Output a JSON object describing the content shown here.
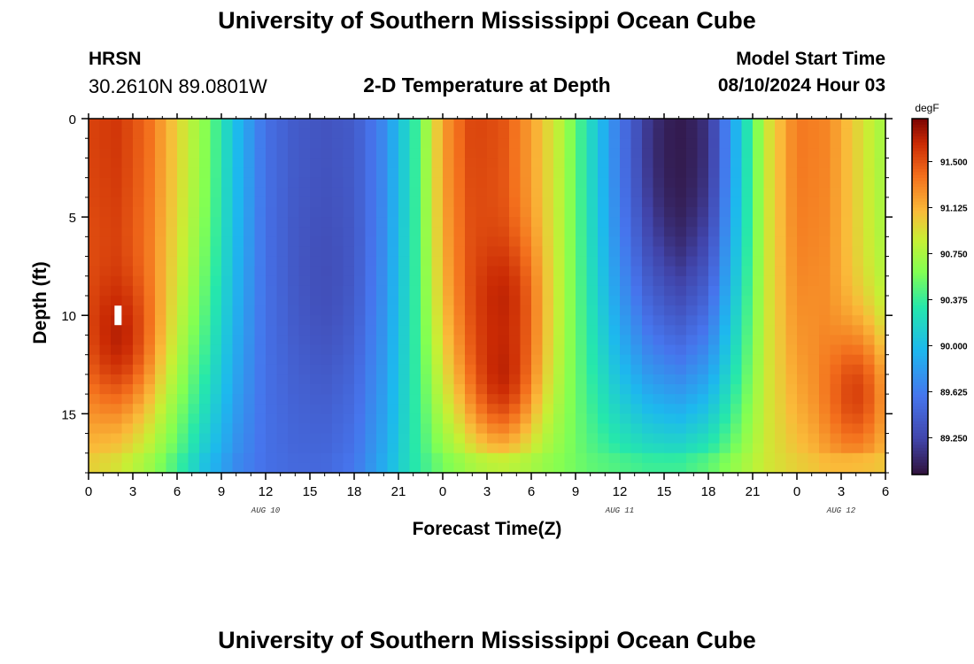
{
  "header": {
    "title": "University of Southern Mississippi Ocean Cube",
    "station": "HRSN",
    "coords": "30.2610N  89.0801W",
    "plot_title": "2-D Temperature at Depth",
    "model_label": "Model Start Time",
    "model_time": "08/10/2024 Hour 03"
  },
  "footer": {
    "title": "University of Southern Mississippi Ocean Cube"
  },
  "chart_data": {
    "type": "heatmap",
    "title": "2-D Temperature at Depth",
    "xlabel": "Forecast Time(Z)",
    "ylabel": "Depth (ft)",
    "x_range_hours_from_aug10_00z": [
      0,
      54
    ],
    "y_range_ft": [
      0,
      18
    ],
    "ylim": [
      18,
      0
    ],
    "x_ticks": [
      "0",
      "3",
      "6",
      "9",
      "12",
      "15",
      "18",
      "21",
      "0",
      "3",
      "6",
      "9",
      "12",
      "15",
      "18",
      "21",
      "0",
      "3",
      "6"
    ],
    "y_ticks": [
      "0",
      "5",
      "10",
      "15"
    ],
    "date_labels": [
      {
        "text": "AUG 10",
        "hour": 12
      },
      {
        "text": "AUG 11",
        "hour": 36
      },
      {
        "text": "AUG 12",
        "hour": 51
      }
    ],
    "colorbar": {
      "unit": "degF",
      "vmin": 88.95,
      "vmax": 91.85,
      "tick_labels": [
        "91.500",
        "91.125",
        "90.750",
        "90.375",
        "90.000",
        "89.625",
        "89.250"
      ],
      "tick_values": [
        91.5,
        91.125,
        90.75,
        90.375,
        90.0,
        89.625,
        89.25
      ]
    },
    "time_profile_hours": [
      0,
      2,
      4,
      6,
      8,
      10,
      12,
      14,
      16,
      18,
      20,
      22,
      24,
      26,
      28,
      30,
      32,
      34,
      36,
      38,
      40,
      42,
      44,
      46,
      48,
      50,
      52,
      54
    ],
    "surface_temp_by_time": [
      91.55,
      91.6,
      91.4,
      91.0,
      90.6,
      90.0,
      89.55,
      89.4,
      89.35,
      89.4,
      89.7,
      90.3,
      91.2,
      91.55,
      91.5,
      91.2,
      90.8,
      90.2,
      89.6,
      89.2,
      89.0,
      89.2,
      90.0,
      90.9,
      91.35,
      91.3,
      91.0,
      90.7
    ],
    "bottom_temp_by_time": [
      91.0,
      90.9,
      90.7,
      90.4,
      90.0,
      89.7,
      89.55,
      89.5,
      89.5,
      89.6,
      89.9,
      90.3,
      90.55,
      90.7,
      90.75,
      90.7,
      90.6,
      90.5,
      90.45,
      90.4,
      90.4,
      90.5,
      90.7,
      90.9,
      91.0,
      91.05,
      91.0,
      91.0
    ],
    "peak_temp_features": [
      {
        "hour": 2,
        "depth_ft": 11,
        "temp": 91.75
      },
      {
        "hour": 28,
        "depth_ft": 9,
        "temp": 91.7
      },
      {
        "hour": 28,
        "depth_ft": 13,
        "temp": 91.75
      },
      {
        "hour": 52,
        "depth_ft": 14,
        "temp": 91.65
      }
    ],
    "cold_core_features": [
      {
        "hour": 16,
        "depth_ft": 8,
        "temp": 89.3
      },
      {
        "hour": 40,
        "depth_ft": 2,
        "temp": 89.0
      }
    ],
    "marker": {
      "hour": 2,
      "depth_ft": 10
    }
  }
}
